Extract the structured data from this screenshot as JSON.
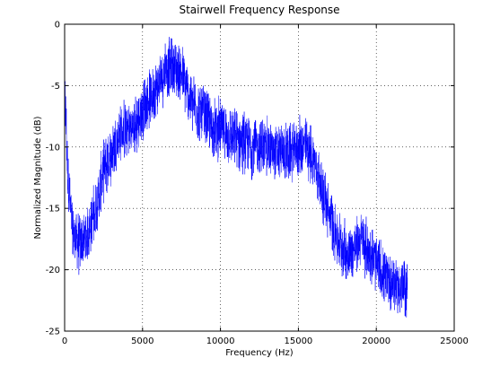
{
  "chart_data": {
    "type": "line",
    "title": "Stairwell Frequency Response",
    "xlabel": "Frequency (Hz)",
    "ylabel": "Normalized Magnitude (dB)",
    "xlim": [
      0,
      25000
    ],
    "ylim": [
      -25,
      0
    ],
    "x_ticks": [
      0,
      5000,
      10000,
      15000,
      20000,
      25000
    ],
    "y_ticks": [
      0,
      -5,
      -10,
      -15,
      -20,
      -25
    ],
    "x_tick_labels": [
      "0",
      "5000",
      "10000",
      "15000",
      "20000",
      "25000"
    ],
    "y_tick_labels": [
      "0",
      "-5",
      "-10",
      "-15",
      "-20",
      "-25"
    ],
    "grid": true,
    "line_color": "#0000ff",
    "series": [
      {
        "x": [
          0,
          200,
          500,
          1000,
          1500,
          2000,
          2500,
          3000,
          3500,
          4000,
          4500,
          5000,
          5500,
          6000,
          6500,
          7000,
          7500,
          8000,
          8500,
          9000,
          9500,
          10000,
          10500,
          11000,
          11500,
          12000,
          12500,
          13000,
          13500,
          14000,
          14500,
          15000,
          15500,
          16000,
          16500,
          17000,
          17500,
          18000,
          18500,
          19000,
          19500,
          20000,
          20500,
          21000,
          21500,
          22000
        ],
        "y": [
          -5,
          -12,
          -17,
          -18,
          -17,
          -15,
          -12,
          -10.5,
          -9,
          -8.5,
          -8.5,
          -7,
          -6,
          -5,
          -3.5,
          -3.5,
          -4,
          -6,
          -7,
          -7.5,
          -8.5,
          -8.5,
          -9,
          -9.5,
          -9.5,
          -10,
          -10,
          -10,
          -10.5,
          -10.5,
          -10.5,
          -10,
          -10,
          -11,
          -13.5,
          -15.5,
          -17.5,
          -18.5,
          -18.5,
          -17.5,
          -18.5,
          -19.5,
          -20.5,
          -21,
          -21.5,
          -21.5
        ]
      }
    ]
  }
}
